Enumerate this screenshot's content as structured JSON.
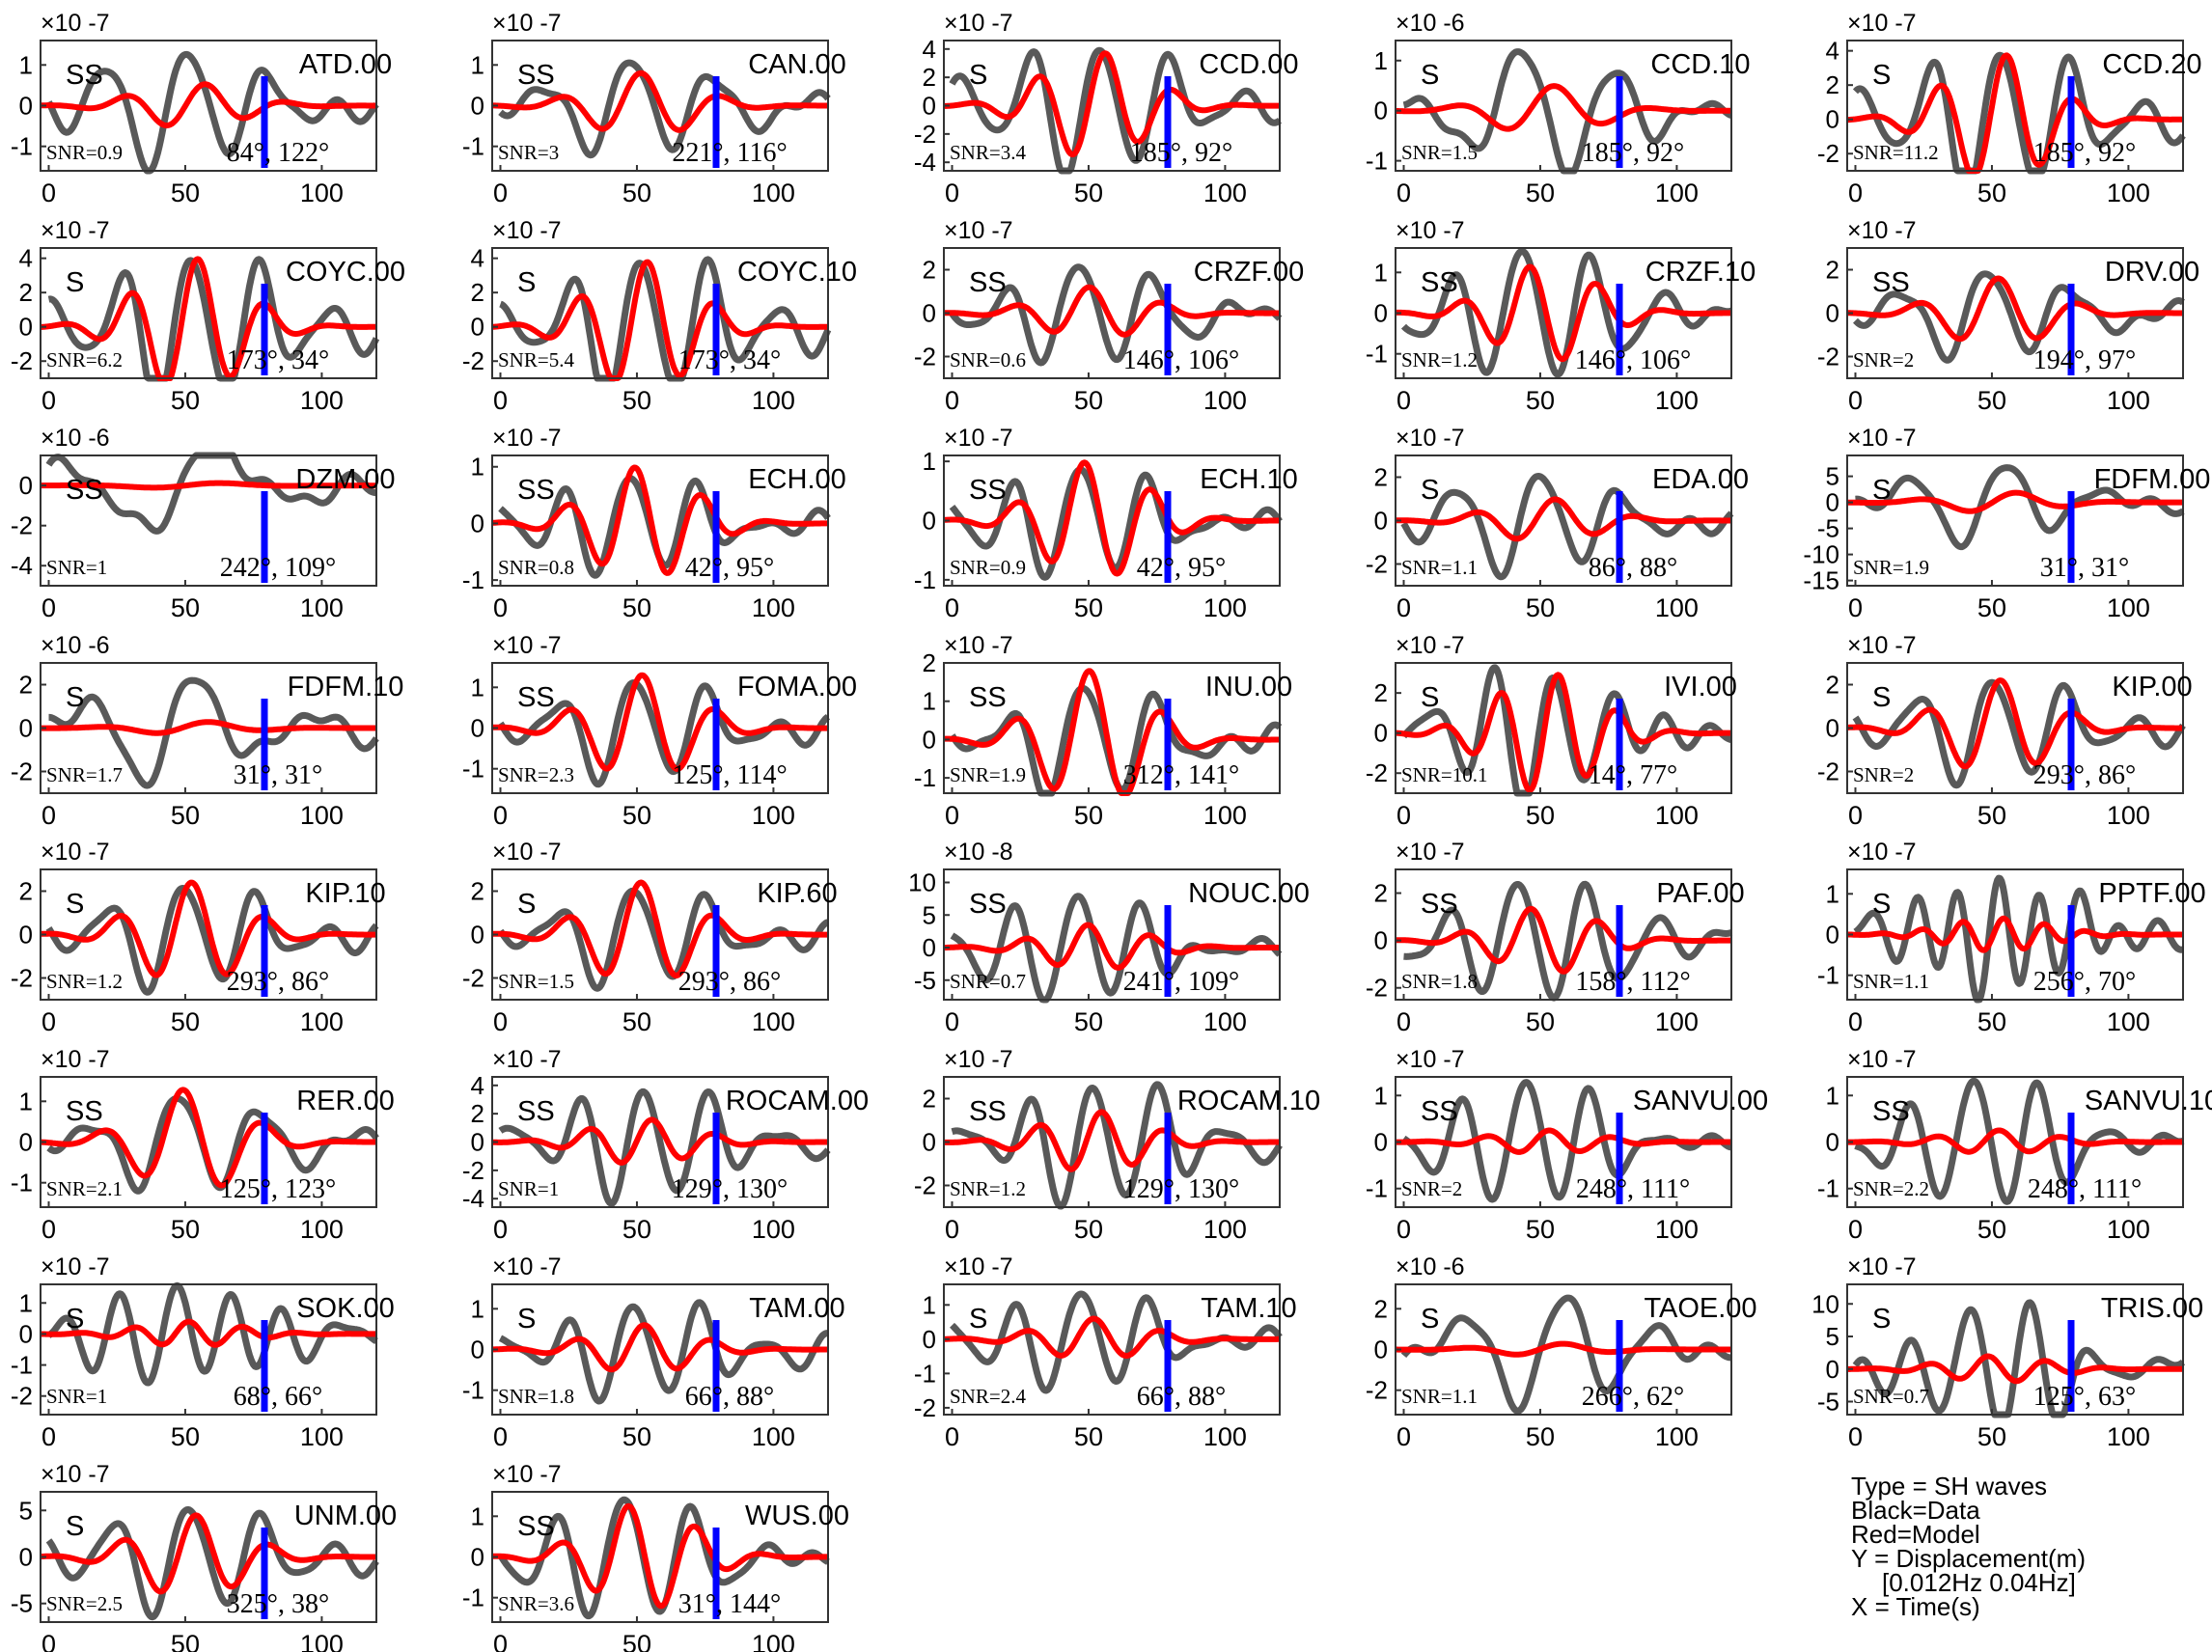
{
  "chart_data": {
    "type": "line",
    "legend": {
      "lines": [
        "Type = SH waves",
        "Black=Data",
        "Red=Model",
        "Y = Displacement(m)",
        "[0.012Hz 0.04Hz]",
        "X = Time(s)"
      ],
      "placement": "bottom-right"
    },
    "colors": {
      "data": "#595959",
      "model": "#ff0000",
      "marker": "#0000ff",
      "axis": "#333333"
    },
    "x_ticks": [
      "0",
      "50",
      "100"
    ],
    "xlim": [
      -3,
      120
    ],
    "marker_x": 79,
    "grid": false,
    "panels": [
      {
        "station": "ATD.00",
        "phase": "SS",
        "snr": "SNR=0.9",
        "angles": "84°, 122°",
        "exp": "×10 -7",
        "yticks": [
          "1",
          "0",
          "-1"
        ],
        "ytick_vals": [
          1,
          0,
          -1
        ],
        "ylim": [
          -1.6,
          1.6
        ],
        "amp": 1.4,
        "model_amp": 0.55,
        "freq": 1.0,
        "data_seed": 1.2,
        "model_seed": 0.4
      },
      {
        "station": "CAN.00",
        "phase": "SS",
        "snr": "SNR=3",
        "angles": "221°, 116°",
        "exp": "×10 -7",
        "yticks": [
          "1",
          "0",
          "-1"
        ],
        "ytick_vals": [
          1,
          0,
          -1
        ],
        "ylim": [
          -1.6,
          1.6
        ],
        "amp": 1.4,
        "model_amp": 0.8,
        "freq": 1.0,
        "data_seed": 2.1,
        "model_seed": 1.7
      },
      {
        "station": "CCD.00",
        "phase": "S",
        "snr": "SNR=3.4",
        "angles": "185°, 92°",
        "exp": "×10 -7",
        "yticks": [
          "4",
          "2",
          "0",
          "-2",
          "-4"
        ],
        "ytick_vals": [
          4,
          2,
          0,
          -2,
          -4
        ],
        "ylim": [
          -4.6,
          4.6
        ],
        "amp": 4.0,
        "model_amp": 3.8,
        "freq": 1.2,
        "data_seed": 0.5,
        "model_seed": 0.5
      },
      {
        "station": "CCD.10",
        "phase": "S",
        "snr": "SNR=1.5",
        "angles": "185°, 92°",
        "exp": "×10 -6",
        "yticks": [
          "1",
          "0",
          "-1"
        ],
        "ytick_vals": [
          1,
          0,
          -1
        ],
        "ylim": [
          -1.2,
          1.4
        ],
        "amp": 1.2,
        "model_amp": 0.5,
        "freq": 0.8,
        "data_seed": 3.0,
        "model_seed": 1.0
      },
      {
        "station": "CCD.20",
        "phase": "S",
        "snr": "SNR=11.2",
        "angles": "185°, 92°",
        "exp": "×10 -7",
        "yticks": [
          "4",
          "2",
          "0",
          "-2"
        ],
        "ytick_vals": [
          4,
          2,
          0,
          -2
        ],
        "ylim": [
          -3.0,
          4.6
        ],
        "amp": 3.8,
        "model_amp": 3.8,
        "freq": 1.2,
        "data_seed": 0.7,
        "model_seed": 0.7
      },
      {
        "station": "COYC.00",
        "phase": "S",
        "snr": "SNR=6.2",
        "angles": "173°, 34°",
        "exp": "×10 -7",
        "yticks": [
          "4",
          "2",
          "0",
          "-2"
        ],
        "ytick_vals": [
          4,
          2,
          0,
          -2
        ],
        "ylim": [
          -3.0,
          4.6
        ],
        "amp": 4.0,
        "model_amp": 4.0,
        "freq": 1.2,
        "data_seed": 0.9,
        "model_seed": 0.9
      },
      {
        "station": "COYC.10",
        "phase": "S",
        "snr": "SNR=5.4",
        "angles": "173°, 34°",
        "exp": "×10 -7",
        "yticks": [
          "4",
          "2",
          "0",
          "-2"
        ],
        "ytick_vals": [
          4,
          2,
          0,
          -2
        ],
        "ylim": [
          -3.0,
          4.6
        ],
        "amp": 4.0,
        "model_amp": 3.8,
        "freq": 1.2,
        "data_seed": 1.1,
        "model_seed": 1.1
      },
      {
        "station": "CRZF.00",
        "phase": "SS",
        "snr": "SNR=0.6",
        "angles": "146°, 106°",
        "exp": "×10 -7",
        "yticks": [
          "2",
          "0",
          "-2"
        ],
        "ytick_vals": [
          2,
          0,
          -2
        ],
        "ylim": [
          -3.0,
          3.0
        ],
        "amp": 2.4,
        "model_amp": 1.2,
        "freq": 1.1,
        "data_seed": 2.6,
        "model_seed": 2.0
      },
      {
        "station": "CRZF.10",
        "phase": "SS",
        "snr": "SNR=1.2",
        "angles": "146°, 106°",
        "exp": "×10 -7",
        "yticks": [
          "1",
          "0",
          "-1"
        ],
        "ytick_vals": [
          1,
          0,
          -1
        ],
        "ylim": [
          -1.6,
          1.6
        ],
        "amp": 1.4,
        "model_amp": 1.2,
        "freq": 1.2,
        "data_seed": 3.3,
        "model_seed": 3.1
      },
      {
        "station": "DRV.00",
        "phase": "SS",
        "snr": "SNR=2",
        "angles": "194°, 97°",
        "exp": "×10 -7",
        "yticks": [
          "2",
          "0",
          "-2"
        ],
        "ytick_vals": [
          2,
          0,
          -2
        ],
        "ylim": [
          -3.0,
          3.0
        ],
        "amp": 2.4,
        "model_amp": 1.6,
        "freq": 1.0,
        "data_seed": 1.9,
        "model_seed": 1.5
      },
      {
        "station": "DZM.00",
        "phase": "SS",
        "snr": "SNR=1",
        "angles": "242°, 109°",
        "exp": "×10 -6",
        "yticks": [
          "0",
          "-2",
          "-4"
        ],
        "ytick_vals": [
          0,
          -2,
          -4
        ],
        "ylim": [
          -5.0,
          1.5
        ],
        "amp": 2.5,
        "model_amp": 0.15,
        "freq": 0.5,
        "data_seed": 0.3,
        "model_seed": 0.2
      },
      {
        "station": "ECH.00",
        "phase": "SS",
        "snr": "SNR=0.8",
        "angles": "42°, 95°",
        "exp": "×10 -7",
        "yticks": [
          "1",
          "0",
          "-1"
        ],
        "ytick_vals": [
          1,
          0,
          -1
        ],
        "ylim": [
          -1.1,
          1.2
        ],
        "amp": 1.0,
        "model_amp": 1.0,
        "freq": 1.2,
        "data_seed": 2.3,
        "model_seed": 2.3
      },
      {
        "station": "ECH.10",
        "phase": "SS",
        "snr": "SNR=0.9",
        "angles": "42°, 95°",
        "exp": "×10 -7",
        "yticks": [
          "1",
          "0",
          "-1"
        ],
        "ytick_vals": [
          1,
          0,
          -1
        ],
        "ylim": [
          -1.1,
          1.1
        ],
        "amp": 1.0,
        "model_amp": 1.0,
        "freq": 1.2,
        "data_seed": 2.5,
        "model_seed": 2.5
      },
      {
        "station": "EDA.00",
        "phase": "S",
        "snr": "SNR=1.1",
        "angles": "86°, 88°",
        "exp": "×10 -7",
        "yticks": [
          "2",
          "0",
          "-2"
        ],
        "ytick_vals": [
          2,
          0,
          -2
        ],
        "ylim": [
          -3.0,
          3.0
        ],
        "amp": 2.4,
        "model_amp": 1.0,
        "freq": 1.0,
        "data_seed": 1.4,
        "model_seed": 0.8
      },
      {
        "station": "FDFM.00",
        "phase": "S",
        "snr": "SNR=1.9",
        "angles": "31°, 31°",
        "exp": "×10 -7",
        "yticks": [
          "5",
          "0",
          "-5",
          "-10",
          "-15"
        ],
        "ytick_vals": [
          5,
          0,
          -5,
          -10,
          -15
        ],
        "ylim": [
          -16,
          9
        ],
        "amp": 7.0,
        "model_amp": 2.0,
        "freq": 0.8,
        "data_seed": 0.6,
        "model_seed": 0.3
      },
      {
        "station": "FDFM.10",
        "phase": "S",
        "snr": "SNR=1.7",
        "angles": "31°, 31°",
        "exp": "×10 -6",
        "yticks": [
          "2",
          "0",
          "-2"
        ],
        "ytick_vals": [
          2,
          0,
          -2
        ],
        "ylim": [
          -3.0,
          3.0
        ],
        "amp": 2.4,
        "model_amp": 0.3,
        "freq": 0.7,
        "data_seed": 0.9,
        "model_seed": 0.5
      },
      {
        "station": "FOMA.00",
        "phase": "SS",
        "snr": "SNR=2.3",
        "angles": "125°, 114°",
        "exp": "×10 -7",
        "yticks": [
          "1",
          "0",
          "-1"
        ],
        "ytick_vals": [
          1,
          0,
          -1
        ],
        "ylim": [
          -1.6,
          1.6
        ],
        "amp": 1.4,
        "model_amp": 1.3,
        "freq": 1.1,
        "data_seed": 1.6,
        "model_seed": 1.6
      },
      {
        "station": "INU.00",
        "phase": "SS",
        "snr": "SNR=1.9",
        "angles": "312°, 141°",
        "exp": "×10 -7",
        "yticks": [
          "2",
          "1",
          "0",
          "-1"
        ],
        "ytick_vals": [
          2,
          1,
          0,
          -1
        ],
        "ylim": [
          -1.4,
          2.0
        ],
        "amp": 1.8,
        "model_amp": 1.8,
        "freq": 1.1,
        "data_seed": 2.0,
        "model_seed": 2.0
      },
      {
        "station": "IVI.00",
        "phase": "S",
        "snr": "SNR=10.1",
        "angles": "14°, 77°",
        "exp": "×10 -7",
        "yticks": [
          "2",
          "0",
          "-2"
        ],
        "ytick_vals": [
          2,
          0,
          -2
        ],
        "ylim": [
          -3.0,
          3.5
        ],
        "amp": 3.0,
        "model_amp": 3.0,
        "freq": 1.4,
        "data_seed": 0.2,
        "model_seed": 0.2
      },
      {
        "station": "KIP.00",
        "phase": "S",
        "snr": "SNR=2",
        "angles": "293°, 86°",
        "exp": "×10 -7",
        "yticks": [
          "2",
          "0",
          "-2"
        ],
        "ytick_vals": [
          2,
          0,
          -2
        ],
        "ylim": [
          -3.0,
          3.0
        ],
        "amp": 2.4,
        "model_amp": 2.2,
        "freq": 1.1,
        "data_seed": 1.3,
        "model_seed": 1.3
      },
      {
        "station": "KIP.10",
        "phase": "S",
        "snr": "SNR=1.2",
        "angles": "293°, 86°",
        "exp": "×10 -7",
        "yticks": [
          "2",
          "0",
          "-2"
        ],
        "ytick_vals": [
          2,
          0,
          -2
        ],
        "ylim": [
          -3.0,
          3.0
        ],
        "amp": 2.6,
        "model_amp": 2.4,
        "freq": 1.1,
        "data_seed": 1.5,
        "model_seed": 1.5
      },
      {
        "station": "KIP.60",
        "phase": "S",
        "snr": "SNR=1.5",
        "angles": "293°, 86°",
        "exp": "×10 -7",
        "yticks": [
          "2",
          "0",
          "-2"
        ],
        "ytick_vals": [
          2,
          0,
          -2
        ],
        "ylim": [
          -3.0,
          3.0
        ],
        "amp": 2.6,
        "model_amp": 2.4,
        "freq": 1.1,
        "data_seed": 1.7,
        "model_seed": 1.7
      },
      {
        "station": "NOUC.00",
        "phase": "SS",
        "snr": "SNR=0.7",
        "angles": "241°, 109°",
        "exp": "×10 -8",
        "yticks": [
          "10",
          "5",
          "0",
          "-5"
        ],
        "ytick_vals": [
          10,
          5,
          0,
          -5
        ],
        "ylim": [
          -8,
          12
        ],
        "amp": 8.0,
        "model_amp": 3.5,
        "freq": 1.3,
        "data_seed": 2.8,
        "model_seed": 2.2
      },
      {
        "station": "PAF.00",
        "phase": "SS",
        "snr": "SNR=1.8",
        "angles": "158°, 112°",
        "exp": "×10 -7",
        "yticks": [
          "2",
          "0",
          "-2"
        ],
        "ytick_vals": [
          2,
          0,
          -2
        ],
        "ylim": [
          -2.5,
          3.0
        ],
        "amp": 2.2,
        "model_amp": 1.4,
        "freq": 1.2,
        "data_seed": 3.6,
        "model_seed": 3.0
      },
      {
        "station": "PPTF.00",
        "phase": "S",
        "snr": "SNR=1.1",
        "angles": "256°, 70°",
        "exp": "×10 -7",
        "yticks": [
          "1",
          "0",
          "-1"
        ],
        "ytick_vals": [
          1,
          0,
          -1
        ],
        "ylim": [
          -1.6,
          1.6
        ],
        "amp": 1.4,
        "model_amp": 0.4,
        "freq": 2.0,
        "data_seed": 0.4,
        "model_seed": 0.6
      },
      {
        "station": "RER.00",
        "phase": "SS",
        "snr": "SNR=2.1",
        "angles": "125°, 123°",
        "exp": "×10 -7",
        "yticks": [
          "1",
          "0",
          "-1"
        ],
        "ytick_vals": [
          1,
          0,
          -1
        ],
        "ylim": [
          -1.6,
          1.6
        ],
        "amp": 1.4,
        "model_amp": 1.3,
        "freq": 1.0,
        "data_seed": 2.2,
        "model_seed": 2.2
      },
      {
        "station": "ROCAM.00",
        "phase": "SS",
        "snr": "SNR=1",
        "angles": "129°, 130°",
        "exp": "×10 -7",
        "yticks": [
          "4",
          "2",
          "0",
          "-2",
          "-4"
        ],
        "ytick_vals": [
          4,
          2,
          0,
          -2,
          -4
        ],
        "ylim": [
          -4.6,
          4.6
        ],
        "amp": 3.6,
        "model_amp": 1.6,
        "freq": 1.3,
        "data_seed": 0.8,
        "model_seed": 0.6
      },
      {
        "station": "ROCAM.10",
        "phase": "SS",
        "snr": "SNR=1.2",
        "angles": "129°, 130°",
        "exp": "×10 -7",
        "yticks": [
          "2",
          "0",
          "-2"
        ],
        "ytick_vals": [
          2,
          0,
          -2
        ],
        "ylim": [
          -3.0,
          3.0
        ],
        "amp": 2.6,
        "model_amp": 1.4,
        "freq": 1.3,
        "data_seed": 1.0,
        "model_seed": 0.8
      },
      {
        "station": "SANVU.00",
        "phase": "SS",
        "snr": "SNR=2",
        "angles": "248°, 111°",
        "exp": "×10 -7",
        "yticks": [
          "1",
          "0",
          "-1"
        ],
        "ytick_vals": [
          1,
          0,
          -1
        ],
        "ylim": [
          -1.4,
          1.4
        ],
        "amp": 1.2,
        "model_amp": 0.25,
        "freq": 1.3,
        "data_seed": 3.1,
        "model_seed": 1.2
      },
      {
        "station": "SANVU.10",
        "phase": "SS",
        "snr": "SNR=2.2",
        "angles": "248°, 111°",
        "exp": "×10 -7",
        "yticks": [
          "1",
          "0",
          "-1"
        ],
        "ytick_vals": [
          1,
          0,
          -1
        ],
        "ylim": [
          -1.4,
          1.4
        ],
        "amp": 1.2,
        "model_amp": 0.25,
        "freq": 1.3,
        "data_seed": 3.4,
        "model_seed": 1.4
      },
      {
        "station": "SOK.00",
        "phase": "S",
        "snr": "SNR=1",
        "angles": "68°, 66°",
        "exp": "×10 -7",
        "yticks": [
          "1",
          "0",
          "-1",
          "-2"
        ],
        "ytick_vals": [
          1,
          0,
          -1,
          -2
        ],
        "ylim": [
          -2.6,
          1.6
        ],
        "amp": 1.6,
        "model_amp": 0.4,
        "freq": 1.5,
        "data_seed": 2.7,
        "model_seed": 1.8
      },
      {
        "station": "TAM.00",
        "phase": "S",
        "snr": "SNR=1.8",
        "angles": "66°, 88°",
        "exp": "×10 -7",
        "yticks": [
          "1",
          "0",
          "-1"
        ],
        "ytick_vals": [
          1,
          0,
          -1
        ],
        "ylim": [
          -1.6,
          1.6
        ],
        "amp": 1.4,
        "model_amp": 0.6,
        "freq": 1.2,
        "data_seed": 1.8,
        "model_seed": 1.4
      },
      {
        "station": "TAM.10",
        "phase": "S",
        "snr": "SNR=2.4",
        "angles": "66°, 88°",
        "exp": "×10 -7",
        "yticks": [
          "1",
          "0",
          "-1",
          "-2"
        ],
        "ytick_vals": [
          1,
          0,
          -1,
          -2
        ],
        "ylim": [
          -2.2,
          1.6
        ],
        "amp": 1.6,
        "model_amp": 0.6,
        "freq": 1.2,
        "data_seed": 2.4,
        "model_seed": 1.6
      },
      {
        "station": "TAOE.00",
        "phase": "S",
        "snr": "SNR=1.1",
        "angles": "266°, 62°",
        "exp": "×10 -6",
        "yticks": [
          "2",
          "0",
          "-2"
        ],
        "ytick_vals": [
          2,
          0,
          -2
        ],
        "ylim": [
          -3.2,
          3.2
        ],
        "amp": 2.6,
        "model_amp": 0.3,
        "freq": 0.8,
        "data_seed": 0.1,
        "model_seed": 0.4
      },
      {
        "station": "TRIS.00",
        "phase": "S",
        "snr": "SNR=0.7",
        "angles": "125°, 63°",
        "exp": "×10 -7",
        "yticks": [
          "10",
          "5",
          "0",
          "-5"
        ],
        "ytick_vals": [
          10,
          5,
          0,
          -5
        ],
        "ylim": [
          -7,
          13
        ],
        "amp": 9.0,
        "model_amp": 2.0,
        "freq": 1.4,
        "data_seed": 3.8,
        "model_seed": 2.6
      },
      {
        "station": "UNM.00",
        "phase": "S",
        "snr": "SNR=2.5",
        "angles": "325°, 38°",
        "exp": "×10 -7",
        "yticks": [
          "5",
          "0",
          "-5"
        ],
        "ytick_vals": [
          5,
          0,
          -5
        ],
        "ylim": [
          -7,
          7
        ],
        "amp": 5.5,
        "model_amp": 4.5,
        "freq": 1.1,
        "data_seed": 1.1,
        "model_seed": 1.1
      },
      {
        "station": "WUS.00",
        "phase": "SS",
        "snr": "SNR=3.6",
        "angles": "31°, 144°",
        "exp": "×10 -7",
        "yticks": [
          "1",
          "0",
          "-1"
        ],
        "ytick_vals": [
          1,
          0,
          -1
        ],
        "ylim": [
          -1.6,
          1.6
        ],
        "amp": 1.4,
        "model_amp": 1.3,
        "freq": 1.2,
        "data_seed": 2.9,
        "model_seed": 2.9
      }
    ]
  }
}
